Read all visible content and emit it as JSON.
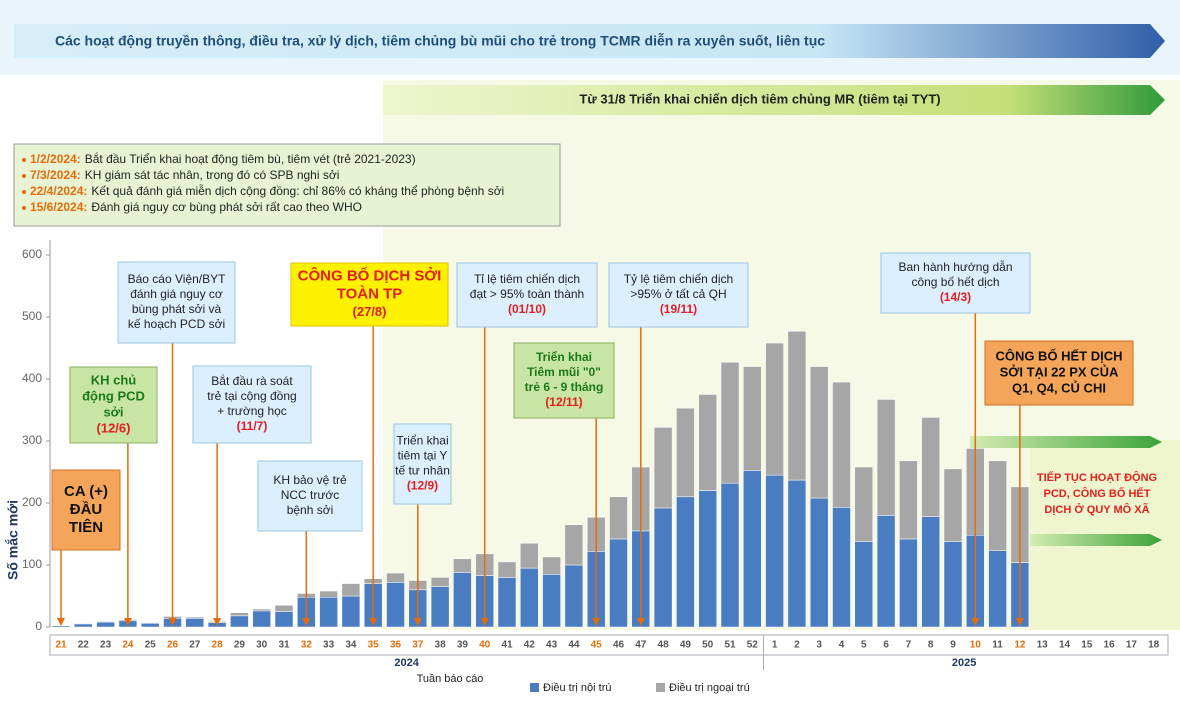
{
  "chart_data": {
    "type": "stacked_bar",
    "banner_top": "Các hoạt động truyền thông, điều tra, xử lý dịch, tiêm chủng bù mũi cho trẻ trong TCMR diễn ra xuyên suốt, liên tục",
    "banner_campaign": "Từ 31/8 Triển khai chiến dịch tiêm chủng MR (tiêm tại TYT)",
    "bullets": [
      {
        "date": "1/2/2024:",
        "text": "Bắt đầu Triển khai hoạt động tiêm bù, tiêm vét (trẻ 2021-2023)"
      },
      {
        "date": "7/3/2024:",
        "text": "KH giám sát tác nhân, trong đó có SPB nghi sởi"
      },
      {
        "date": "22/4/2024:",
        "text": "Kết quả đánh giá miễn dịch cộng đồng: chỉ 86% có kháng thể phòng bệnh sởi"
      },
      {
        "date": "15/6/2024:",
        "text": "Đánh giá nguy cơ bùng phát sởi rất cao theo WHO"
      }
    ],
    "y_label": "Số mắc mới",
    "x_label": "Tuần báo cáo",
    "x_groups": [
      "2024",
      "2025"
    ],
    "categories": [
      "21",
      "22",
      "23",
      "24",
      "25",
      "26",
      "27",
      "28",
      "29",
      "30",
      "31",
      "32",
      "33",
      "34",
      "35",
      "36",
      "37",
      "38",
      "39",
      "40",
      "41",
      "42",
      "43",
      "44",
      "45",
      "46",
      "47",
      "48",
      "49",
      "50",
      "51",
      "52",
      "1",
      "2",
      "3",
      "4",
      "5",
      "6",
      "7",
      "8",
      "9",
      "10",
      "11",
      "12",
      "13",
      "14",
      "15",
      "16",
      "17",
      "18"
    ],
    "category_colors": [
      "#e46c0a",
      "#555",
      "#555",
      "#e46c0a",
      "#555",
      "#e46c0a",
      "#555",
      "#e46c0a",
      "#555",
      "#555",
      "#555",
      "#e46c0a",
      "#555",
      "#555",
      "#e46c0a",
      "#e46c0a",
      "#e46c0a",
      "#555",
      "#555",
      "#e46c0a",
      "#555",
      "#555",
      "#555",
      "#555",
      "#e46c0a",
      "#555",
      "#555",
      "#555",
      "#555",
      "#555",
      "#555",
      "#555",
      "#555",
      "#555",
      "#555",
      "#555",
      "#555",
      "#555",
      "#555",
      "#555",
      "#555",
      "#e46c0a",
      "#555",
      "#e46c0a",
      "#555",
      "#555",
      "#555",
      "#555",
      "#555",
      "#555"
    ],
    "series": [
      {
        "name": "Điều trị nội trú",
        "color": "#4a7cc2",
        "values": [
          2,
          5,
          8,
          10,
          6,
          14,
          14,
          7,
          18,
          26,
          25,
          48,
          48,
          50,
          70,
          72,
          60,
          65,
          88,
          83,
          80,
          95,
          85,
          100,
          122,
          142,
          155,
          192,
          210,
          220,
          232,
          252,
          245,
          237,
          208,
          193,
          138,
          180,
          142,
          178,
          138,
          148,
          123,
          104,
          null,
          null,
          null,
          null,
          null,
          null
        ]
      },
      {
        "name": "Điều trị ngoại trú",
        "color": "#a6a6a6",
        "values": [
          0,
          1,
          1,
          2,
          1,
          3,
          2,
          2,
          5,
          3,
          10,
          6,
          10,
          20,
          8,
          15,
          15,
          15,
          22,
          35,
          25,
          40,
          28,
          65,
          55,
          68,
          103,
          130,
          143,
          155,
          195,
          168,
          213,
          240,
          212,
          202,
          120,
          187,
          126,
          160,
          117,
          140,
          145,
          122,
          null,
          null,
          null,
          null,
          null,
          null
        ]
      }
    ],
    "ylim": [
      0,
      600
    ],
    "yticks": [
      0,
      100,
      200,
      300,
      400,
      500,
      600
    ],
    "grid": false,
    "annotations": [
      {
        "lines": [
          "CA (+)",
          "ĐẦU",
          "TIÊN"
        ]
      },
      {
        "lines": [
          "KH chủ",
          "động PCD",
          "sởi"
        ],
        "date": "(12/6)"
      },
      {
        "lines": [
          "Báo cáo Viện/BYT",
          "đánh giá nguy cơ",
          "bùng phát sởi và",
          "kế hoạch PCD sởi"
        ]
      },
      {
        "lines": [
          "Bắt đầu rà soát",
          "trẻ tại cộng đồng",
          "+ trường học"
        ],
        "date": "(11/7)"
      },
      {
        "lines": [
          "KH bảo vệ trẻ",
          "NCC trước",
          "bệnh sởi"
        ]
      },
      {
        "lines": [
          "CÔNG BỐ DỊCH SỞI",
          "TOÀN TP"
        ],
        "date": "(27/8)"
      },
      {
        "lines": [
          "Triển khai",
          "tiêm tại Y",
          "tế tư nhân"
        ],
        "date": "(12/9)"
      },
      {
        "lines": [
          "Tỉ lệ tiêm chiến dịch",
          "đạt > 95% toàn thành"
        ],
        "date": "(01/10)"
      },
      {
        "lines": [
          "Triển khai",
          "Tiêm mũi \"0\"",
          "trẻ 6 - 9 tháng"
        ],
        "date": "(12/11)"
      },
      {
        "lines": [
          "Tỷ lệ tiêm chiến dịch",
          ">95% ở tất cả QH"
        ],
        "date": "(19/11)"
      },
      {
        "lines": [
          "Ban hành hướng dẫn",
          "công bố hết dịch"
        ],
        "date": "(14/3)"
      },
      {
        "lines": [
          "CÔNG BỐ HẾT DỊCH",
          "SỞI TẠI 22 PX CỦA",
          "Q1, Q4, CỦ CHI"
        ]
      }
    ],
    "side_note": [
      "TIẾP TỤC HOẠT ĐỘNG",
      "PCD, CÔNG BỐ HẾT",
      "DỊCH Ở QUY MÔ XÃ"
    ]
  }
}
